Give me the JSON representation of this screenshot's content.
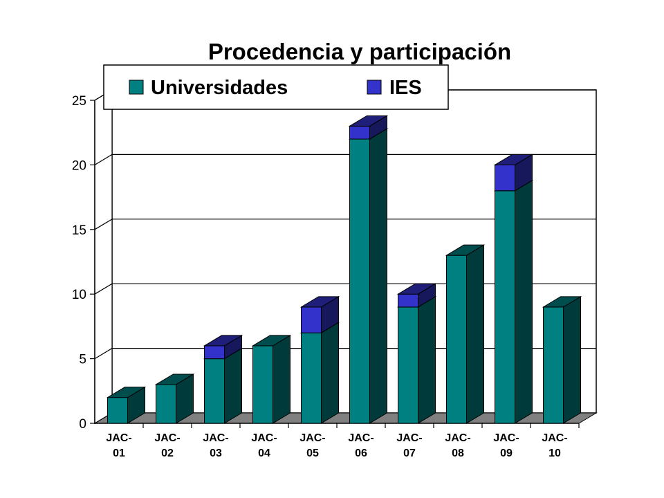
{
  "chart_data": {
    "type": "bar",
    "stacked": true,
    "three_d": true,
    "title": "Procedencia y participación",
    "categories": [
      [
        "JAC-",
        "01"
      ],
      [
        "JAC-",
        "02"
      ],
      [
        "JAC-",
        "03"
      ],
      [
        "JAC-",
        "04"
      ],
      [
        "JAC-",
        "05"
      ],
      [
        "JAC-",
        "06"
      ],
      [
        "JAC-",
        "07"
      ],
      [
        "JAC-",
        "08"
      ],
      [
        "JAC-",
        "09"
      ],
      [
        "JAC-",
        "10"
      ]
    ],
    "series": [
      {
        "name": "Universidades",
        "color": "#008080",
        "values": [
          2,
          3,
          5,
          6,
          7,
          22,
          9,
          13,
          18,
          9
        ]
      },
      {
        "name": "IES",
        "color": "#3333cc",
        "values": [
          0,
          0,
          1,
          0,
          2,
          1,
          1,
          0,
          2,
          0
        ]
      }
    ],
    "ylim": [
      0,
      25
    ],
    "yticks": [
      "0",
      "5",
      "10",
      "15",
      "20",
      "25"
    ],
    "grid": true,
    "legend": "top"
  }
}
